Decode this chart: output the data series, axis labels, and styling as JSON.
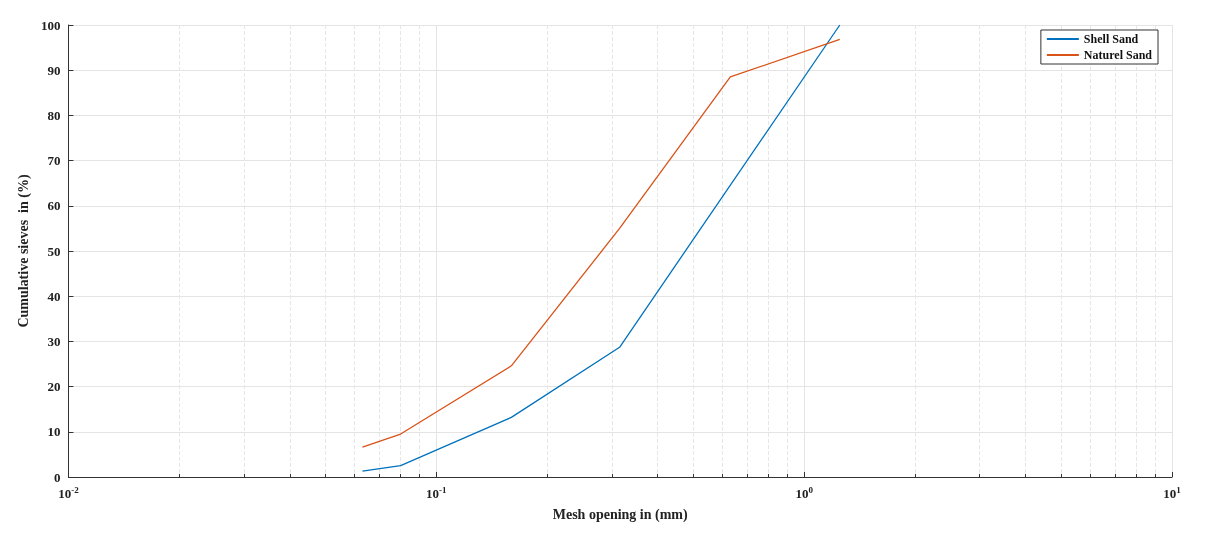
{
  "chart_data": {
    "type": "line",
    "xlabel": "Mesh opening in (mm)",
    "ylabel": "Cumulative sieves  in (%)",
    "log": "x",
    "xlim": [
      0.01,
      10
    ],
    "xticks": [
      {
        "value": 0.01,
        "label": "10$^{-2}$"
      },
      {
        "value": 0.1,
        "label": "10$^{-1}$"
      },
      {
        "value": 1,
        "label": "10$^{0}$"
      },
      {
        "value": 10,
        "label": "10$^{1}$"
      }
    ],
    "ylim": [
      0,
      100
    ],
    "yticks": [
      0,
      10,
      20,
      30,
      40,
      50,
      60,
      70,
      80,
      90,
      100
    ],
    "grid": true,
    "legend": "top right",
    "marker": "none",
    "line_style": "solid",
    "series": [
      {
        "name": "Shell Sand",
        "color": "#0072bd",
        "x": [
          0.063,
          0.08,
          0.16,
          0.315,
          1.25
        ],
        "values": [
          1.3,
          2.5,
          13.2,
          28.7,
          100
        ]
      },
      {
        "name": "Naturel Sand",
        "color": "#d95319",
        "x": [
          0.063,
          0.08,
          0.16,
          0.315,
          0.63,
          1.25
        ],
        "values": [
          6.6,
          9.5,
          24.6,
          55,
          88.5,
          96.8
        ]
      }
    ]
  }
}
